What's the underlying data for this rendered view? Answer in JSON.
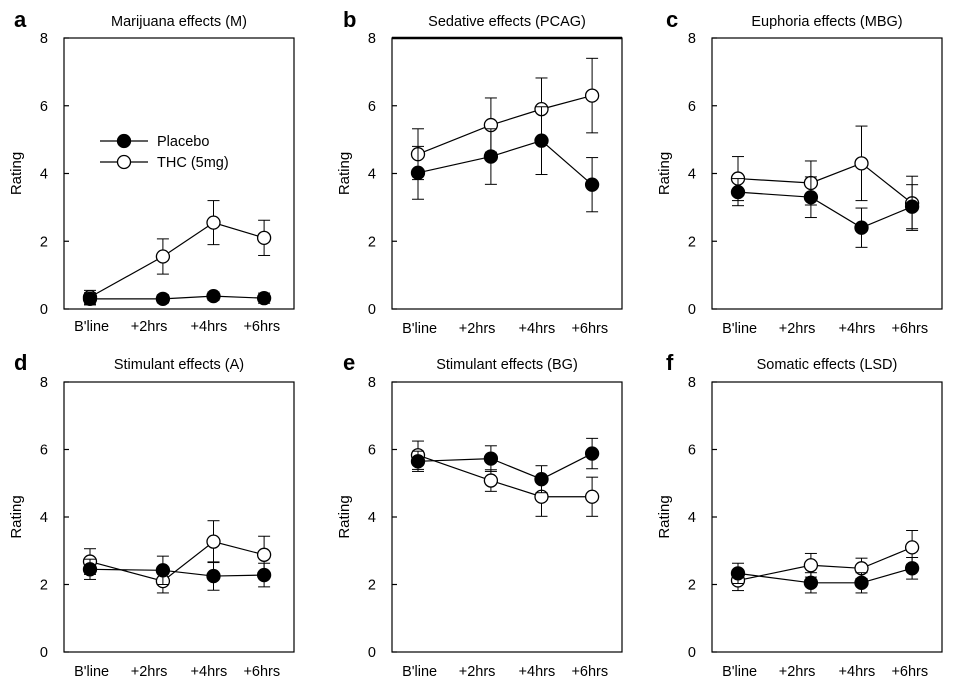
{
  "legend": {
    "placebo": "Placebo",
    "thc": "THC (5mg)",
    "placement": "inside panel a, upper-left"
  },
  "styles": {
    "placebo_marker": "#000000",
    "thc_marker": "#ffffff",
    "line_color": "#000000"
  },
  "chart_data": [
    {
      "type": "line",
      "letter": "a",
      "title": "Marijuana effects (M)",
      "ylabel": "Rating",
      "ylim": [
        0,
        8
      ],
      "yticks": [
        "0",
        "2",
        "4",
        "6",
        "8"
      ],
      "categories": [
        "B'line",
        "+2hrs",
        "+4hrs",
        "+6hrs"
      ],
      "series": [
        {
          "name": "Placebo",
          "values": [
            0.3,
            0.3,
            0.38,
            0.32
          ],
          "err": [
            0.18,
            0.12,
            0.12,
            0.15
          ]
        },
        {
          "name": "THC (5mg)",
          "values": [
            0.35,
            1.55,
            2.55,
            2.1
          ],
          "err": [
            0.2,
            0.52,
            0.65,
            0.52
          ]
        }
      ]
    },
    {
      "type": "line",
      "letter": "b",
      "title": "Sedative effects (PCAG)",
      "ylabel": "Rating",
      "ylim": [
        0,
        8
      ],
      "yticks": [
        "0",
        "2",
        "4",
        "6",
        "8"
      ],
      "categories": [
        "B'line",
        "+2hrs",
        "+4hrs",
        "+6hrs"
      ],
      "series": [
        {
          "name": "Placebo",
          "values": [
            4.02,
            4.5,
            4.97,
            3.67
          ],
          "err": [
            0.78,
            0.82,
            1.0,
            0.8
          ]
        },
        {
          "name": "THC (5mg)",
          "values": [
            4.57,
            5.43,
            5.9,
            6.3
          ],
          "err": [
            0.75,
            0.8,
            0.92,
            1.1
          ]
        }
      ]
    },
    {
      "type": "line",
      "letter": "c",
      "title": "Euphoria effects (MBG)",
      "ylabel": "Rating",
      "ylim": [
        0,
        8
      ],
      "yticks": [
        "0",
        "2",
        "4",
        "6",
        "8"
      ],
      "categories": [
        "B'line",
        "+2hrs",
        "+4hrs",
        "+6hrs"
      ],
      "series": [
        {
          "name": "Placebo",
          "values": [
            3.45,
            3.3,
            2.4,
            3.02
          ],
          "err": [
            0.4,
            0.6,
            0.58,
            0.65
          ]
        },
        {
          "name": "THC (5mg)",
          "values": [
            3.85,
            3.72,
            4.3,
            3.12
          ],
          "err": [
            0.65,
            0.65,
            1.1,
            0.8
          ]
        }
      ]
    },
    {
      "type": "line",
      "letter": "d",
      "title": "Stimulant effects (A)",
      "ylabel": "Rating",
      "ylim": [
        0,
        8
      ],
      "yticks": [
        "0",
        "2",
        "4",
        "6",
        "8"
      ],
      "categories": [
        "B'line",
        "+2hrs",
        "+4hrs",
        "+6hrs"
      ],
      "series": [
        {
          "name": "Placebo",
          "values": [
            2.45,
            2.42,
            2.25,
            2.28
          ],
          "err": [
            0.3,
            0.42,
            0.42,
            0.35
          ]
        },
        {
          "name": "THC (5mg)",
          "values": [
            2.68,
            2.1,
            3.27,
            2.88
          ],
          "err": [
            0.38,
            0.35,
            0.62,
            0.55
          ]
        }
      ]
    },
    {
      "type": "line",
      "letter": "e",
      "title": "Stimulant effects (BG)",
      "ylabel": "Rating",
      "ylim": [
        0,
        8
      ],
      "yticks": [
        "0",
        "2",
        "4",
        "6",
        "8"
      ],
      "categories": [
        "B'line",
        "+2hrs",
        "+4hrs",
        "+6hrs"
      ],
      "series": [
        {
          "name": "Placebo",
          "values": [
            5.65,
            5.73,
            5.12,
            5.88
          ],
          "err": [
            0.3,
            0.38,
            0.4,
            0.45
          ]
        },
        {
          "name": "THC (5mg)",
          "values": [
            5.83,
            5.08,
            4.6,
            4.6
          ],
          "err": [
            0.42,
            0.32,
            0.58,
            0.58
          ]
        }
      ]
    },
    {
      "type": "line",
      "letter": "f",
      "title": "Somatic effects (LSD)",
      "ylabel": "Rating",
      "ylim": [
        0,
        8
      ],
      "yticks": [
        "0",
        "2",
        "4",
        "6",
        "8"
      ],
      "categories": [
        "B'line",
        "+2hrs",
        "+4hrs",
        "+6hrs"
      ],
      "series": [
        {
          "name": "Placebo",
          "values": [
            2.33,
            2.05,
            2.05,
            2.48
          ],
          "err": [
            0.3,
            0.3,
            0.3,
            0.32
          ]
        },
        {
          "name": "THC (5mg)",
          "values": [
            2.12,
            2.57,
            2.48,
            3.1
          ],
          "err": [
            0.3,
            0.35,
            0.3,
            0.5
          ]
        }
      ]
    }
  ]
}
